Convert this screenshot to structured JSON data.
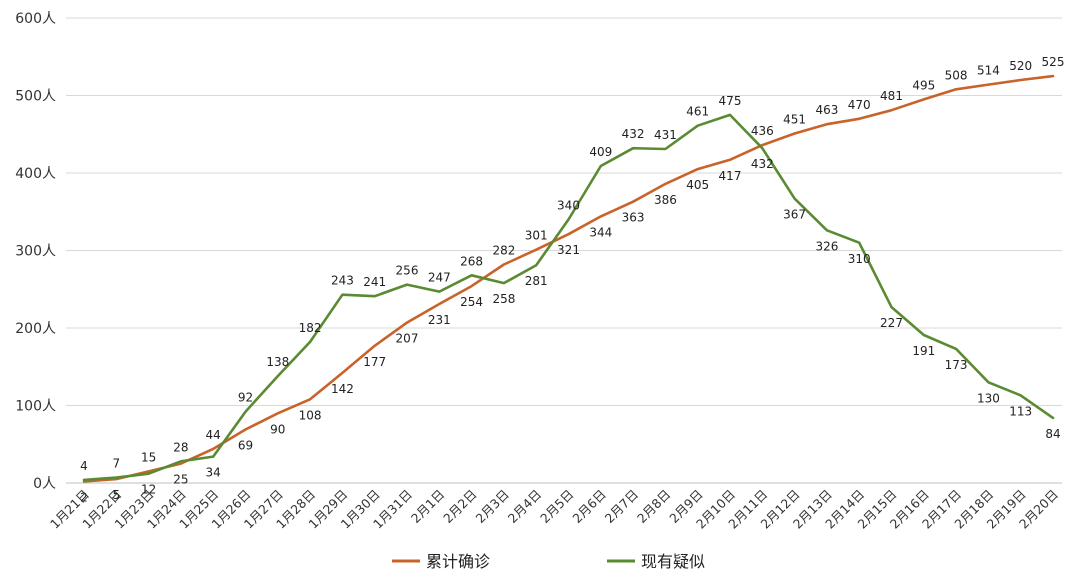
{
  "chart_data": {
    "type": "line",
    "title": "",
    "xlabel": "",
    "ylabel": "",
    "ylim": [
      0,
      600
    ],
    "y_ticks": [
      "0人",
      "100人",
      "200人",
      "300人",
      "400人",
      "500人",
      "600人"
    ],
    "y_tick_values": [
      0,
      100,
      200,
      300,
      400,
      500,
      600
    ],
    "grid": true,
    "legend_position": "bottom",
    "categories": [
      "1月21日",
      "1月22日",
      "1月23日",
      "1月24日",
      "1月25日",
      "1月26日",
      "1月27日",
      "1月28日",
      "1月29日",
      "1月30日",
      "1月31日",
      "2月1日",
      "2月2日",
      "2月3日",
      "2月4日",
      "2月5日",
      "2月6日",
      "2月7日",
      "2月8日",
      "2月9日",
      "2月10日",
      "2月11日",
      "2月12日",
      "2月13日",
      "2月14日",
      "2月15日",
      "2月16日",
      "2月17日",
      "2月18日",
      "2月19日",
      "2月20日"
    ],
    "series": [
      {
        "name": "累计确诊",
        "color": "#c8632a",
        "values": [
          2,
          5,
          15,
          25,
          44,
          69,
          90,
          108,
          142,
          177,
          207,
          231,
          254,
          282,
          301,
          321,
          344,
          363,
          386,
          405,
          417,
          436,
          451,
          463,
          470,
          481,
          495,
          508,
          514,
          520,
          525
        ],
        "labels": [
          "2",
          "5",
          "15",
          "25",
          "44",
          "69",
          "90",
          "108",
          "142",
          "177",
          "207",
          "231",
          "254",
          "282",
          "301",
          "321",
          "344",
          "363",
          "386",
          "405",
          "417",
          "436",
          "451",
          "463",
          "470",
          "481",
          "495",
          "508",
          "514",
          "520",
          "525"
        ]
      },
      {
        "name": "现有疑似",
        "color": "#5a8a32",
        "values": [
          4,
          7,
          12,
          28,
          34,
          92,
          138,
          182,
          243,
          241,
          256,
          247,
          268,
          258,
          281,
          340,
          409,
          432,
          431,
          461,
          475,
          432,
          367,
          326,
          310,
          227,
          191,
          173,
          130,
          113,
          84
        ],
        "labels": [
          "4",
          "7",
          "12",
          "28",
          "34",
          "92",
          "138",
          "182",
          "243",
          "241",
          "256",
          "247",
          "268",
          "258",
          "281",
          "340",
          "409",
          "432",
          "431",
          "461",
          "475",
          "432",
          "367",
          "326",
          "310",
          "227",
          "191",
          "173",
          "130",
          "113",
          "84"
        ]
      }
    ]
  },
  "colors": {
    "grid": "#d9d9d9",
    "axis": "#bfbfbf"
  }
}
